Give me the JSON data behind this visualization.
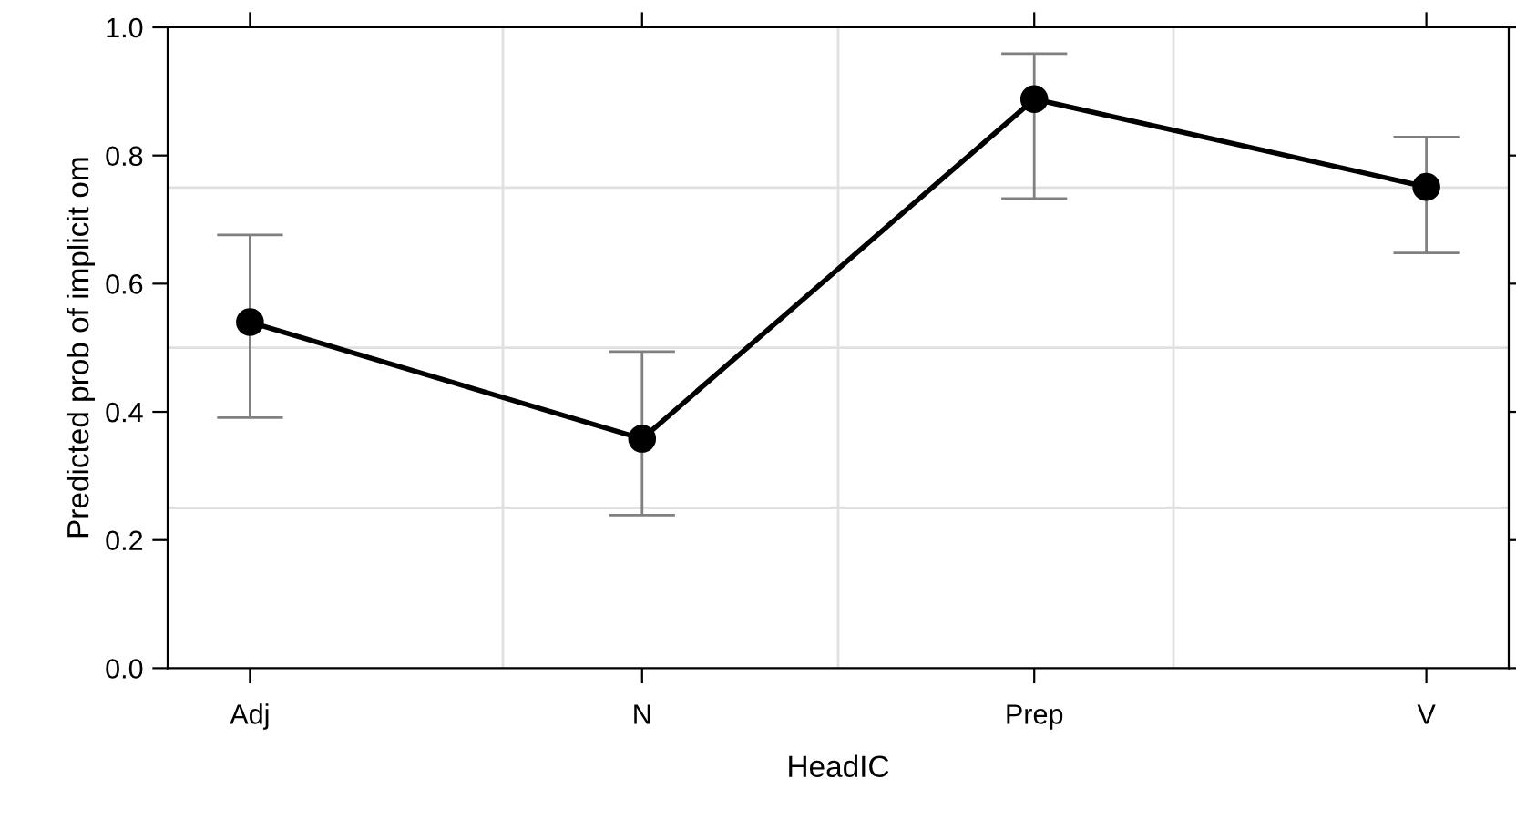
{
  "chart_data": {
    "type": "line",
    "xlabel": "HeadIC",
    "ylabel": "Predicted prob of implicit om",
    "categories": [
      "Adj",
      "N",
      "Prep",
      "V"
    ],
    "series": [
      {
        "color": "#000000",
        "values": [
          0.54,
          0.358,
          0.888,
          0.751
        ],
        "errors": [
          [
            0.391,
            0.676
          ],
          [
            0.239,
            0.494
          ],
          [
            0.733,
            0.959
          ],
          [
            0.648,
            0.829
          ]
        ]
      }
    ],
    "ylim": [
      0,
      1
    ],
    "yticks": [
      {
        "value": 0,
        "label": "0.0"
      },
      0.2,
      0.4,
      0.6,
      0.8,
      {
        "value": 1,
        "label": "1.0"
      }
    ],
    "grid": true,
    "marker": "circle",
    "line_style": "solid"
  }
}
